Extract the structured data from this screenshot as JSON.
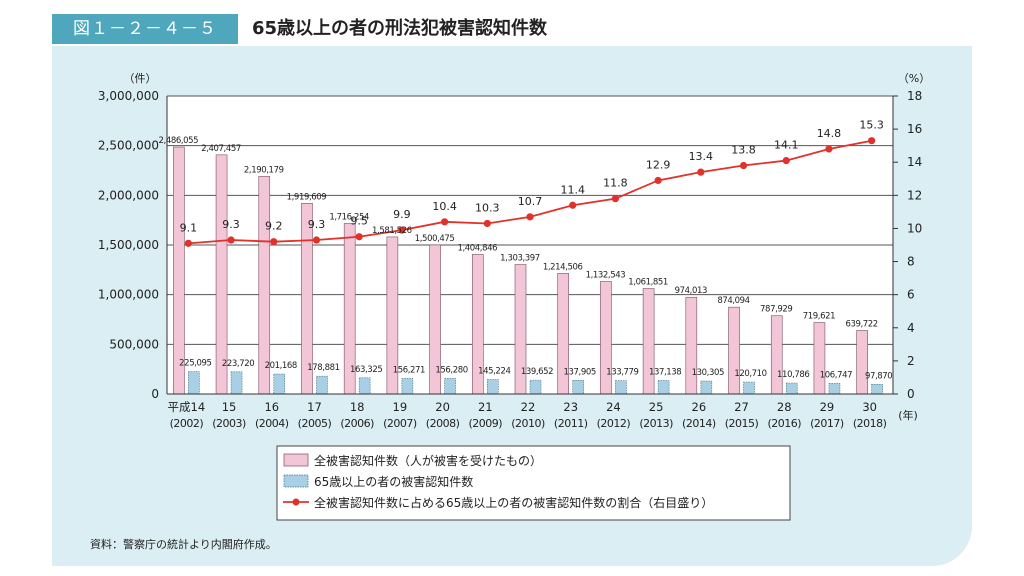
{
  "header": {
    "figure_number": "図１－２－４－５",
    "title": "65歳以上の者の刑法犯被害認知件数"
  },
  "source_note": "資料：警察庁の統計より内閣府作成。",
  "colors": {
    "total_bar": "#f2c6d6",
    "elderly_bar": "#a8cfe3",
    "ratio_line": "#e0322a",
    "header_tag": "#4fa7be",
    "panel_bg": "#dbeef3"
  },
  "chart_data": {
    "type": "bar",
    "categories": [
      "平成14",
      "15",
      "16",
      "17",
      "18",
      "19",
      "20",
      "21",
      "22",
      "23",
      "24",
      "25",
      "26",
      "27",
      "28",
      "29",
      "30"
    ],
    "categories_sub": [
      "(2002)",
      "(2003)",
      "(2004)",
      "(2005)",
      "(2006)",
      "(2007)",
      "(2008)",
      "(2009)",
      "(2010)",
      "(2011)",
      "(2012)",
      "(2013)",
      "(2014)",
      "(2015)",
      "(2016)",
      "(2017)",
      "(2018)"
    ],
    "x_unit": "(年)",
    "series": [
      {
        "name": "全被害認知件数（人が被害を受けたもの）",
        "type": "bar",
        "axis": "left",
        "values": [
          2486055,
          2407457,
          2190179,
          1919609,
          1716254,
          1581526,
          1500475,
          1404846,
          1303397,
          1214506,
          1132543,
          1061851,
          974013,
          874094,
          787929,
          719621,
          639722
        ],
        "labels": [
          "2,486,055",
          "2,407,457",
          "2,190,179",
          "1,919,609",
          "1,716,254",
          "1,581,526",
          "1,500,475",
          "1,404,846",
          "1,303,397",
          "1,214,506",
          "1,132,543",
          "1,061,851",
          "974,013",
          "874,094",
          "787,929",
          "719,621",
          "639,722"
        ]
      },
      {
        "name": "65歳以上の者の被害認知件数",
        "type": "bar",
        "axis": "left",
        "values": [
          225095,
          223720,
          201168,
          178881,
          163325,
          156271,
          156280,
          145224,
          139652,
          137905,
          133779,
          137138,
          130305,
          120710,
          110786,
          106747,
          97870
        ],
        "labels": [
          "225,095",
          "223,720",
          "201,168",
          "178,881",
          "163,325",
          "156,271",
          "156,280",
          "145,224",
          "139,652",
          "137,905",
          "133,779",
          "137,138",
          "130,305",
          "120,710",
          "110,786",
          "106,747",
          "97,870"
        ]
      },
      {
        "name": "全被害認知件数に占める65歳以上の者の被害認知件数の割合（右目盛り）",
        "type": "line",
        "axis": "right",
        "values": [
          9.1,
          9.3,
          9.2,
          9.3,
          9.5,
          9.9,
          10.4,
          10.3,
          10.7,
          11.4,
          11.8,
          12.9,
          13.4,
          13.8,
          14.1,
          14.8,
          15.3
        ],
        "labels": [
          "9.1",
          "9.3",
          "9.2",
          "9.3",
          "9.5",
          "9.9",
          "10.4",
          "10.3",
          "10.7",
          "11.4",
          "11.8",
          "12.9",
          "13.4",
          "13.8",
          "14.1",
          "14.8",
          "15.3"
        ]
      }
    ],
    "y_left": {
      "unit": "（件）",
      "ylim": [
        0,
        3000000
      ],
      "ticks": [
        0,
        500000,
        1000000,
        1500000,
        2000000,
        2500000,
        3000000
      ],
      "tick_labels": [
        "0",
        "500,000",
        "1,000,000",
        "1,500,000",
        "2,000,000",
        "2,500,000",
        "3,000,000"
      ]
    },
    "y_right": {
      "unit": "（%）",
      "ylim": [
        0,
        18
      ],
      "ticks": [
        0,
        2,
        4,
        6,
        8,
        10,
        12,
        14,
        16,
        18
      ],
      "tick_labels": [
        "0",
        "2",
        "4",
        "6",
        "8",
        "10",
        "12",
        "14",
        "16",
        "18"
      ]
    },
    "grid": "horizontal",
    "legend": "bottom-center"
  }
}
